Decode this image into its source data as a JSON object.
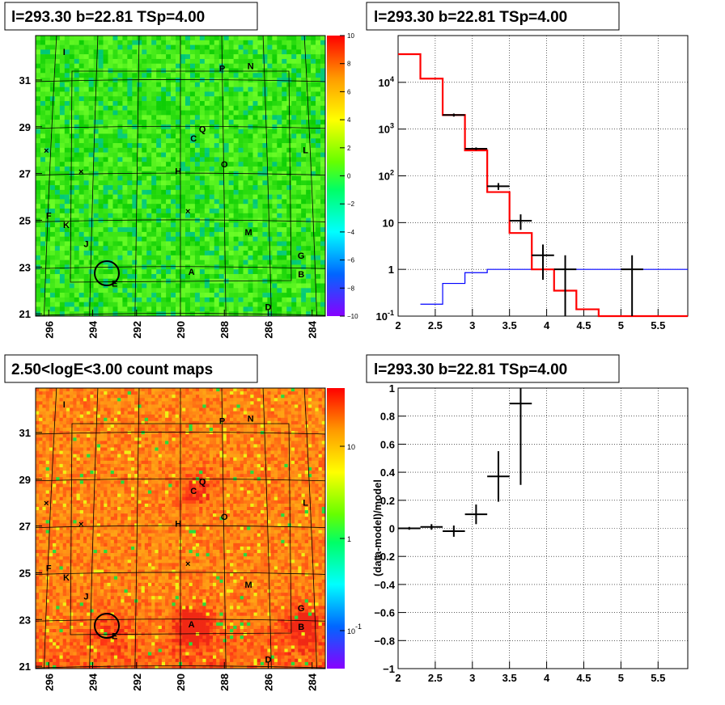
{
  "panels": {
    "map1": {
      "title": "l=293.30 b=22.81 TSp=4.00"
    },
    "spectrum": {
      "title": "l=293.30 b=22.81 TSp=4.00"
    },
    "map2": {
      "title": "2.50<logE<3.00 count maps"
    },
    "residual": {
      "title": "l=293.30 b=22.81 TSp=4.00"
    }
  },
  "colors": {
    "data": "#000000",
    "model": "#ff0000",
    "bkg": "#0000ff"
  },
  "chart_data": [
    {
      "type": "heatmap",
      "name": "ts-map",
      "title": "l=293.30 b=22.81 TSp=4.00",
      "x_ticks": [
        "296",
        "294",
        "292",
        "290",
        "288",
        "286",
        "284"
      ],
      "y_ticks": [
        "21",
        "23",
        "25",
        "27",
        "29",
        "31"
      ],
      "colorbar_ticks": [
        "10",
        "8",
        "6",
        "4",
        "2",
        "0",
        "−2",
        "−4",
        "−6",
        "−8",
        "−10"
      ],
      "colorbar_range": [
        -10,
        10
      ],
      "sources": [
        {
          "label": "I",
          "l": 295.3,
          "b": 32.2
        },
        {
          "label": "P",
          "l": 288.1,
          "b": 31.5
        },
        {
          "label": "N",
          "l": 286.8,
          "b": 31.6
        },
        {
          "label": "Q",
          "l": 289.0,
          "b": 28.9
        },
        {
          "label": "C",
          "l": 289.4,
          "b": 28.5
        },
        {
          "label": "L",
          "l": 284.3,
          "b": 28.0
        },
        {
          "label": "O",
          "l": 288.0,
          "b": 27.4
        },
        {
          "label": "H",
          "l": 290.1,
          "b": 27.1
        },
        {
          "label": "F",
          "l": 296.0,
          "b": 25.2
        },
        {
          "label": "K",
          "l": 295.2,
          "b": 24.8
        },
        {
          "label": "J",
          "l": 294.3,
          "b": 24.0
        },
        {
          "label": "M",
          "l": 286.9,
          "b": 24.5
        },
        {
          "label": "G",
          "l": 284.5,
          "b": 23.5
        },
        {
          "label": "A",
          "l": 289.5,
          "b": 22.8
        },
        {
          "label": "B",
          "l": 284.5,
          "b": 22.7
        },
        {
          "label": "E",
          "l": 293.0,
          "b": 22.3
        },
        {
          "label": "D",
          "l": 286.0,
          "b": 21.3
        }
      ]
    },
    {
      "type": "line",
      "name": "spectrum",
      "title": "l=293.30 b=22.81 TSp=4.00",
      "xlim": [
        2,
        5.9
      ],
      "ylim": [
        0.1,
        100000
      ],
      "yscale": "log",
      "x_ticks": [
        "2",
        "2.5",
        "3",
        "3.5",
        "4",
        "4.5",
        "5",
        "5.5"
      ],
      "y_ticks": [
        "10^-1",
        "1",
        "10",
        "10^2",
        "10^3",
        "10^4"
      ],
      "model_step": {
        "edges": [
          2.0,
          2.3,
          2.6,
          2.9,
          3.2,
          3.5,
          3.8,
          4.1,
          4.4,
          4.7,
          5.0,
          5.9
        ],
        "values": [
          40000,
          12000,
          2000,
          350,
          45,
          6,
          1,
          0.35,
          0.14,
          0.1,
          0.1
        ]
      },
      "bkg_step": {
        "edges": [
          2.3,
          2.6,
          2.9,
          3.2,
          3.5,
          3.8,
          5.9
        ],
        "values": [
          0.18,
          0.5,
          0.85,
          1.0,
          1.0,
          1.0
        ]
      },
      "data_points": [
        {
          "x": 2.75,
          "y": 2000,
          "xerr": 0.15,
          "ylo": 1850,
          "yhi": 2150
        },
        {
          "x": 3.05,
          "y": 380,
          "xerr": 0.15,
          "ylo": 355,
          "yhi": 405
        },
        {
          "x": 3.35,
          "y": 60,
          "xerr": 0.15,
          "ylo": 50,
          "yhi": 70
        },
        {
          "x": 3.65,
          "y": 11,
          "xerr": 0.15,
          "ylo": 7,
          "yhi": 15
        },
        {
          "x": 3.95,
          "y": 2,
          "xerr": 0.15,
          "ylo": 0.6,
          "yhi": 3.4
        },
        {
          "x": 4.25,
          "y": 1,
          "xerr": 0.15,
          "ylo": 0.1,
          "yhi": 2.0
        },
        {
          "x": 5.15,
          "y": 1,
          "xerr": 0.15,
          "ylo": 0.1,
          "yhi": 2.0
        }
      ]
    },
    {
      "type": "heatmap",
      "name": "count-map",
      "title": "2.50<logE<3.00 count maps",
      "x_ticks": [
        "296",
        "294",
        "292",
        "290",
        "288",
        "286",
        "284"
      ],
      "y_ticks": [
        "21",
        "23",
        "25",
        "27",
        "29",
        "31"
      ],
      "colorbar_ticks": [
        "10",
        "1",
        "10^-1"
      ],
      "colorbar_scale": "log"
    },
    {
      "type": "scatter",
      "name": "residual",
      "title": "l=293.30 b=22.81 TSp=4.00",
      "ylabel": "(data-model)/model",
      "xlim": [
        2,
        5.9
      ],
      "ylim": [
        -1,
        1
      ],
      "x_ticks": [
        "2",
        "2.5",
        "3",
        "3.5",
        "4",
        "4.5",
        "5",
        "5.5"
      ],
      "y_ticks": [
        "−1",
        "−0.8",
        "−0.6",
        "−0.4",
        "−0.2",
        "0",
        "0.2",
        "0.4",
        "0.6",
        "0.8",
        "1"
      ],
      "points": [
        {
          "x": 2.15,
          "y": 0.0,
          "xerr": 0.15,
          "yerr": 0.01
        },
        {
          "x": 2.45,
          "y": 0.01,
          "xerr": 0.15,
          "yerr": 0.02
        },
        {
          "x": 2.75,
          "y": -0.02,
          "xerr": 0.15,
          "yerr": 0.04
        },
        {
          "x": 3.05,
          "y": 0.1,
          "xerr": 0.15,
          "yerr": 0.07
        },
        {
          "x": 3.35,
          "y": 0.37,
          "xerr": 0.15,
          "yerr": 0.18
        },
        {
          "x": 3.65,
          "y": 0.89,
          "xerr": 0.15,
          "yerr": 0.58
        }
      ]
    }
  ]
}
